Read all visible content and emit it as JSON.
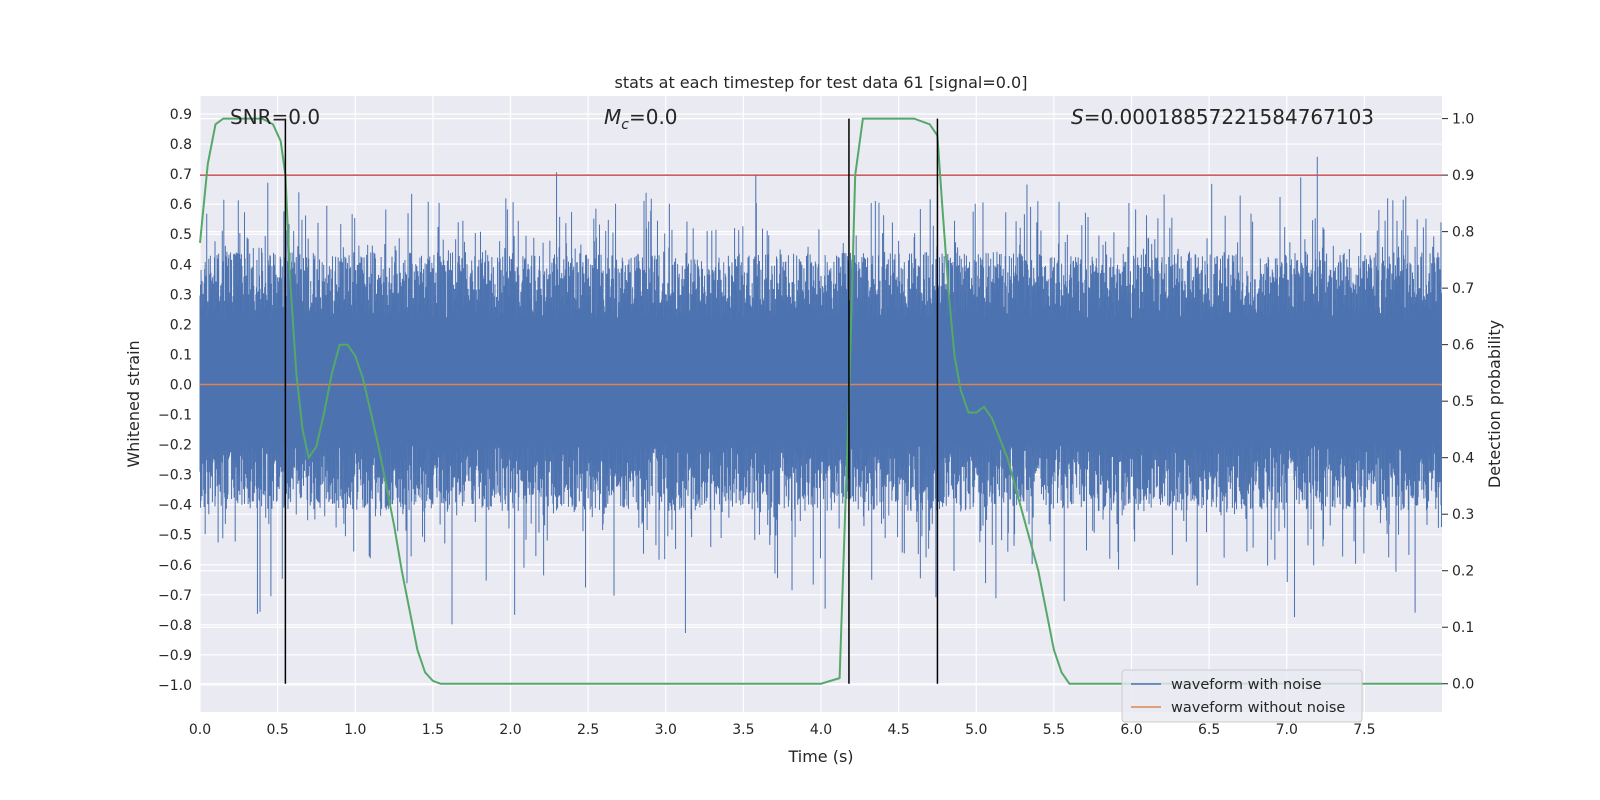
{
  "chart_data": {
    "type": "line",
    "title": "stats at each timestep for test data 61 [signal=0.0]",
    "xlabel": "Time (s)",
    "ylabel": "Whitened strain",
    "y2label": "Detection probability",
    "xlim": [
      0.0,
      8.0
    ],
    "ylim": [
      -1.09,
      0.96
    ],
    "y2lim": [
      -0.05,
      1.04
    ],
    "xticks": [
      "0.0",
      "0.5",
      "1.0",
      "1.5",
      "2.0",
      "2.5",
      "3.0",
      "3.5",
      "4.0",
      "4.5",
      "5.0",
      "5.5",
      "6.0",
      "6.5",
      "7.0",
      "7.5"
    ],
    "yticks": [
      "0.9",
      "0.8",
      "0.7",
      "0.6",
      "0.5",
      "0.4",
      "0.3",
      "0.2",
      "0.1",
      "0.0",
      "−0.1",
      "−0.2",
      "−0.3",
      "−0.4",
      "−0.5",
      "−0.6",
      "−0.7",
      "−0.8",
      "−0.9",
      "−1.0"
    ],
    "y2ticks": [
      "1.0",
      "0.9",
      "0.8",
      "0.7",
      "0.6",
      "0.5",
      "0.4",
      "0.3",
      "0.2",
      "0.1",
      "0.0"
    ],
    "grid": true,
    "legend_position": "lower-right",
    "annotations": {
      "snr": "SNR=0.0",
      "mc_symbol": "M",
      "mc_sub": "c",
      "mc_value": "=0.0",
      "s_symbol": "S",
      "s_value": "=0.00018857221584767103"
    },
    "series": [
      {
        "name": "waveform with noise",
        "color": "#4c72b0",
        "kind": "noise band",
        "envelope_typical": [
          -0.45,
          0.5
        ],
        "extremes": [
          -1.0,
          0.88
        ]
      },
      {
        "name": "waveform without noise",
        "color": "#dd8452",
        "x": [
          0.0,
          8.0
        ],
        "y": [
          0.0,
          0.0
        ]
      }
    ],
    "detection_probability": {
      "axis": "right",
      "color": "#55a868",
      "x": [
        0.0,
        0.05,
        0.1,
        0.15,
        0.2,
        0.3,
        0.4,
        0.47,
        0.52,
        0.55,
        0.58,
        0.62,
        0.66,
        0.7,
        0.75,
        0.8,
        0.85,
        0.9,
        0.95,
        1.0,
        1.05,
        1.1,
        1.15,
        1.2,
        1.25,
        1.3,
        1.35,
        1.4,
        1.45,
        1.5,
        1.55,
        1.6,
        1.8,
        2.0,
        3.0,
        4.0,
        4.12,
        4.18,
        4.22,
        4.27,
        4.3,
        4.4,
        4.6,
        4.7,
        4.75,
        4.78,
        4.82,
        4.86,
        4.9,
        4.95,
        5.0,
        5.05,
        5.1,
        5.2,
        5.3,
        5.4,
        5.5,
        5.55,
        5.6,
        6.0,
        7.0,
        8.0
      ],
      "y": [
        0.78,
        0.92,
        0.99,
        1.0,
        1.0,
        1.0,
        1.0,
        0.99,
        0.96,
        0.9,
        0.72,
        0.55,
        0.45,
        0.4,
        0.42,
        0.48,
        0.55,
        0.6,
        0.6,
        0.58,
        0.54,
        0.48,
        0.42,
        0.35,
        0.28,
        0.2,
        0.13,
        0.06,
        0.02,
        0.005,
        0.0,
        0.0,
        0.0,
        0.0,
        0.0,
        0.0,
        0.01,
        0.5,
        0.9,
        1.0,
        1.0,
        1.0,
        1.0,
        0.99,
        0.97,
        0.85,
        0.7,
        0.58,
        0.52,
        0.48,
        0.48,
        0.49,
        0.47,
        0.4,
        0.3,
        0.2,
        0.06,
        0.02,
        0.0,
        0.0,
        0.0,
        0.0
      ]
    },
    "hlines": [
      {
        "axis": "right",
        "y": 0.9,
        "color": "#c44e52"
      }
    ],
    "vlines": [
      0.55,
      4.18,
      4.75
    ],
    "vline_range": [
      0.0,
      1.0
    ]
  }
}
